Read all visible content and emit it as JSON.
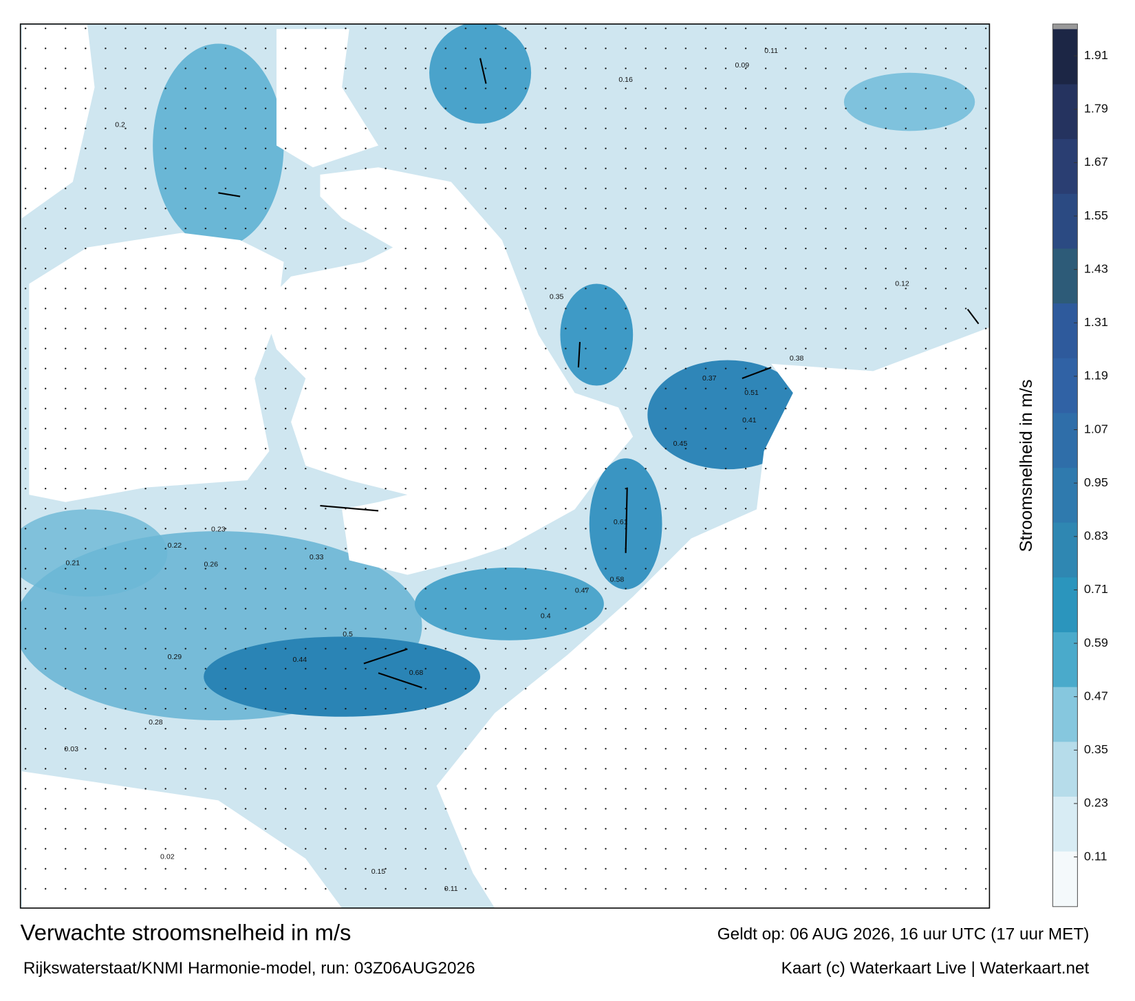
{
  "map": {
    "title": "Verwachte stroomsnelheid in m/s",
    "subtitle": "Rijkswaterstaat/KNMI Harmonie-model, run: 03Z06AUG2026",
    "valid": "Geldt op: 06 AUG 2026, 16 uur UTC (17 uur MET)",
    "credit": "Kaart (c) Waterkaart Live | Waterkaart.net",
    "labels": [
      0.68,
      0.5,
      0.44,
      0.61,
      0.58,
      0.51,
      0.45,
      0.37,
      0.38,
      0.41,
      0.33,
      0.29,
      0.28,
      0.26,
      0.22,
      0.21,
      0.2,
      0.16,
      0.11,
      0.09,
      0.15,
      0.11,
      0.02,
      0.03,
      0.23,
      0.4,
      0.47,
      0.35,
      0.12
    ],
    "colorbar": {
      "label": "Stroomsnelheid in m/s",
      "clim": [
        0,
        1.97
      ],
      "ticks": [
        0.11,
        0.23,
        0.35,
        0.47,
        0.59,
        0.71,
        0.83,
        0.95,
        1.07,
        1.19,
        1.31,
        1.43,
        1.55,
        1.67,
        1.79,
        1.91
      ],
      "colors": [
        "#f4f9fb",
        "#d8ecf4",
        "#b6dcea",
        "#86c7de",
        "#4aaacb",
        "#2b95bd",
        "#2f87b2",
        "#2f7aae",
        "#2f6ea9",
        "#3062a5",
        "#2e5a9c",
        "#2d5b78",
        "#2b4a82",
        "#2a3e72",
        "#25335f",
        "#1c2645"
      ]
    }
  }
}
